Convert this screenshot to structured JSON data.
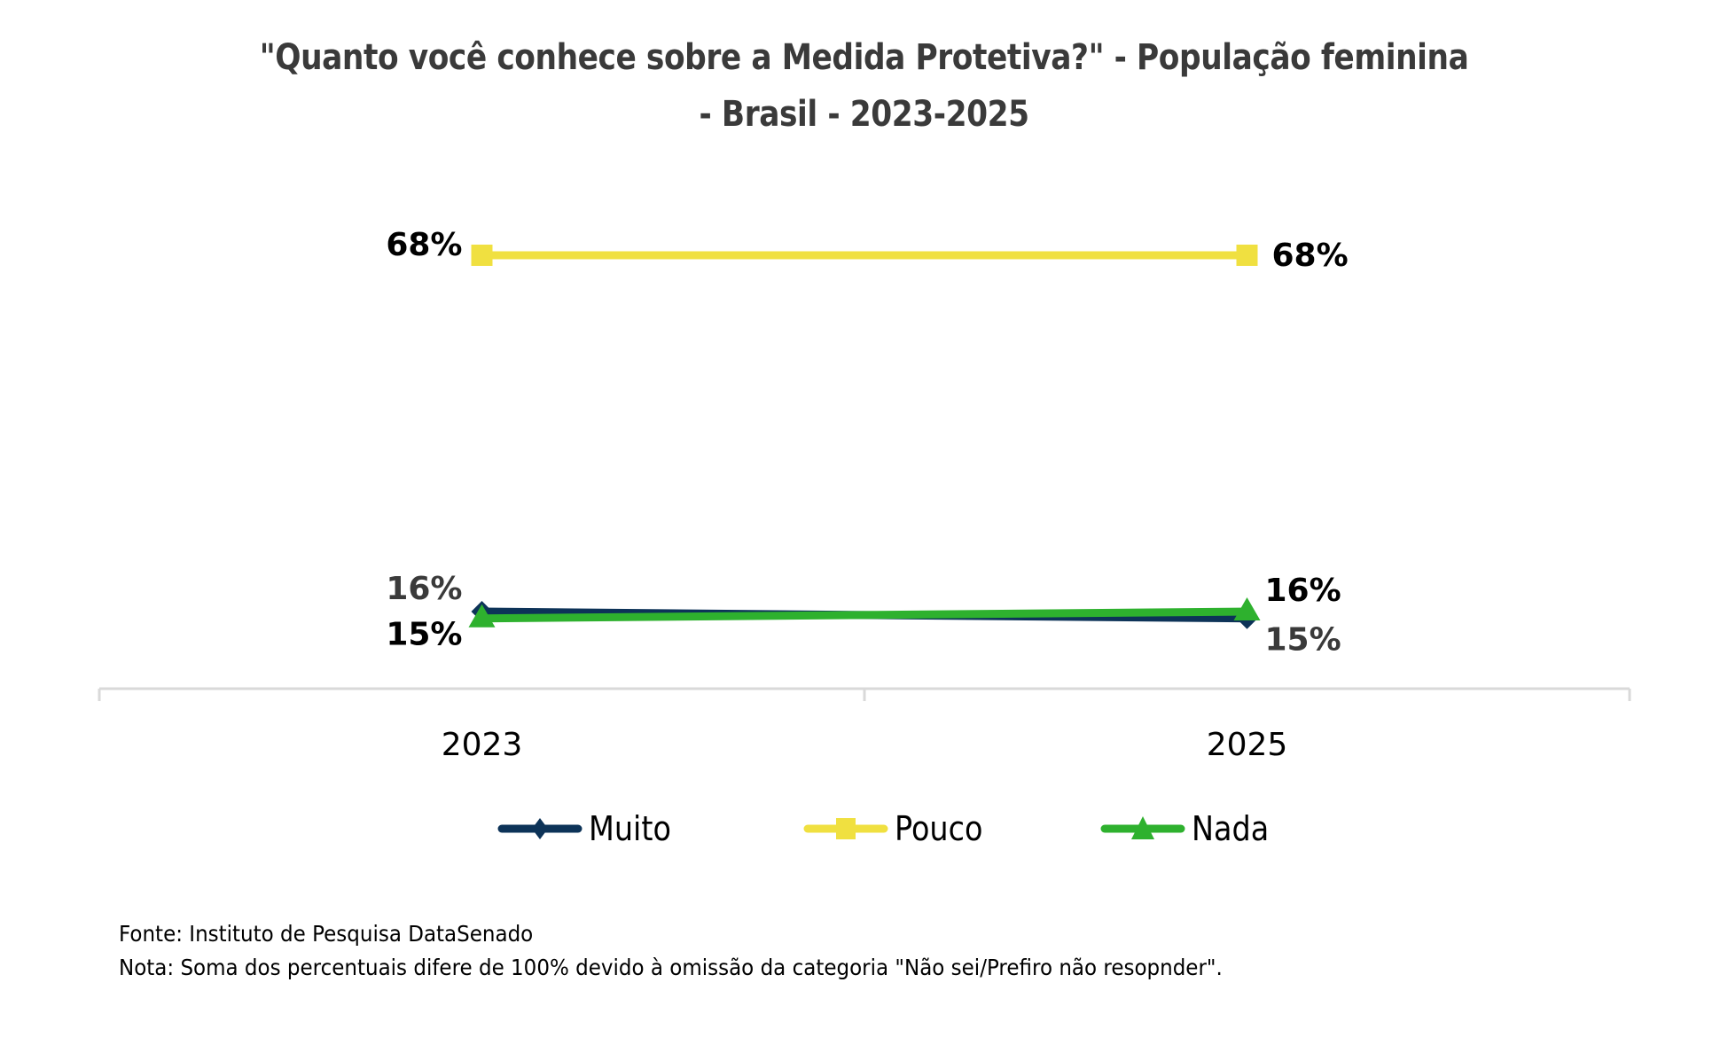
{
  "chart_data": {
    "type": "line",
    "title_lines": [
      "\"Quanto você conhece sobre a Medida Protetiva?\" - População feminina",
      "- Brasil - 2023-2025"
    ],
    "categories": [
      "2023",
      "2025"
    ],
    "ylim": [
      0,
      80
    ],
    "grid": false,
    "legend_position": "bottom",
    "series": [
      {
        "name": "Muito",
        "values": [
          16,
          15
        ],
        "labels": [
          "16%",
          "15%"
        ],
        "color": "#0d3358",
        "marker": "diamond"
      },
      {
        "name": "Pouco",
        "values": [
          68,
          68
        ],
        "labels": [
          "68%",
          "68%"
        ],
        "color": "#f0e040",
        "marker": "square"
      },
      {
        "name": "Nada",
        "values": [
          15,
          16
        ],
        "labels": [
          "15%",
          "16%"
        ],
        "color": "#2eb12e",
        "marker": "triangle"
      }
    ],
    "axis_color": "#d9d9d9"
  },
  "footer": {
    "source": "Fonte: Instituto de Pesquisa DataSenado",
    "note": "Nota: Soma dos percentuais difere de 100% devido à omissão da categoria \"Não sei/Prefiro não resopnder\"."
  }
}
